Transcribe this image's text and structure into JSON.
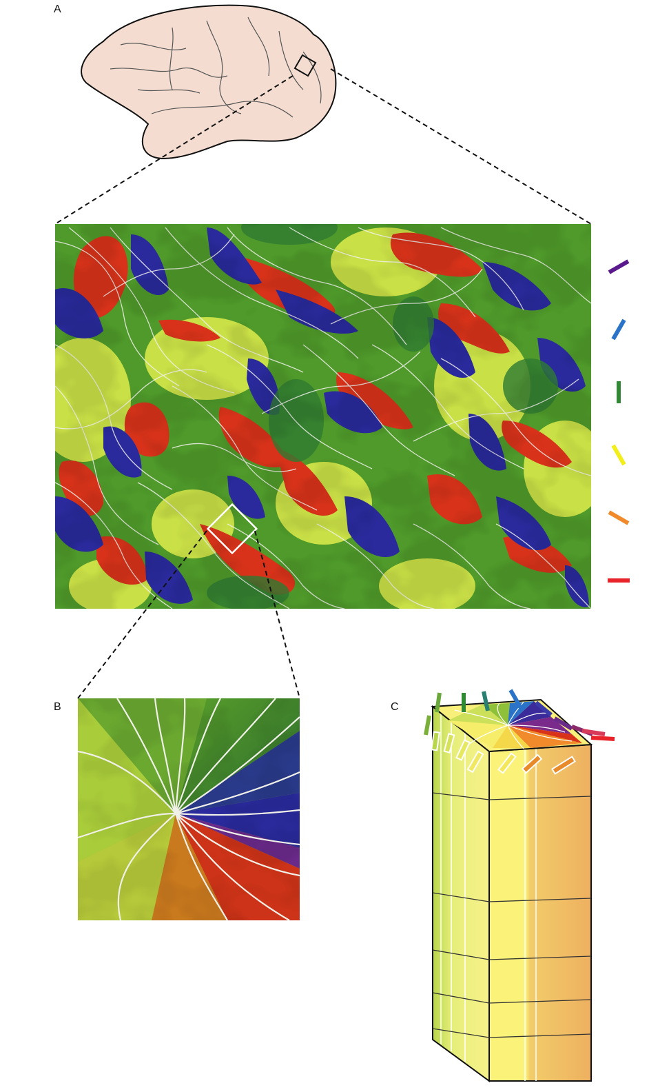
{
  "panels": {
    "a": {
      "label": "A"
    },
    "b": {
      "label": "B"
    },
    "c": {
      "label": "C"
    }
  },
  "colors": {
    "purple": "#5a1a8c",
    "blue": "#2a73c8",
    "green": "#2f8a33",
    "yellow": "#f2ee1a",
    "orange": "#f08a2a",
    "red": "#e8232a",
    "brain_fill": "#f4ddd0",
    "brain_outline": "#111111",
    "map_blue": "#2a2a9c",
    "map_green": "#4f9a2a",
    "map_yellow": "#d7e84a",
    "map_red": "#d8331a",
    "contour": "#f2f2ee",
    "column_yellow": "#fbf27a",
    "column_orange": "#eeb060"
  },
  "orientation_legend": [
    {
      "color": "purple",
      "angle_deg": 30
    },
    {
      "color": "blue",
      "angle_deg": 60
    },
    {
      "color": "green",
      "angle_deg": 90
    },
    {
      "color": "yellow",
      "angle_deg": 120
    },
    {
      "color": "orange",
      "angle_deg": 150
    },
    {
      "color": "red",
      "angle_deg": 180
    }
  ],
  "icons": {
    "brain": "brain-outline-icon",
    "zoom_square": "zoom-square-icon",
    "pinwheel": "pinwheel-icon",
    "column": "cortical-column-icon"
  }
}
